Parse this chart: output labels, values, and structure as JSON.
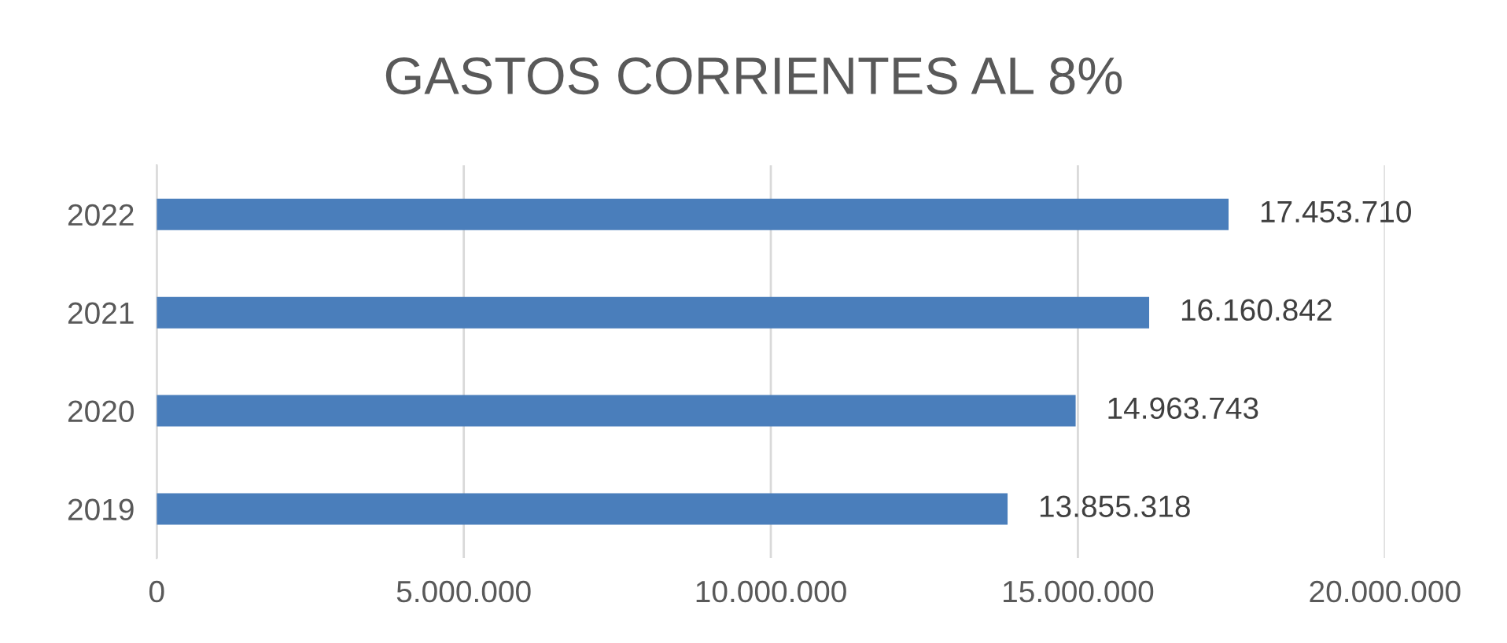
{
  "chart_data": {
    "type": "bar",
    "orientation": "horizontal",
    "title": "GASTOS CORRIENTES AL 8%",
    "categories": [
      "2022",
      "2021",
      "2020",
      "2019"
    ],
    "values": [
      17453710,
      16160842,
      14963743,
      13855318
    ],
    "value_labels": [
      "17.453.710",
      "16.160.842",
      "14.963.743",
      "13.855.318"
    ],
    "color": "#4a7ebb",
    "xlim": [
      0,
      20000000
    ],
    "xticks": [
      0,
      {
        "value": 5000000,
        "label": "5.000.000"
      },
      {
        "value": 10000000,
        "label": "10.000.000"
      },
      {
        "value": 15000000,
        "label": "15.000.000"
      },
      {
        "value": 20000000,
        "label": "20.000.000"
      }
    ],
    "grid": "x",
    "legend": false
  }
}
